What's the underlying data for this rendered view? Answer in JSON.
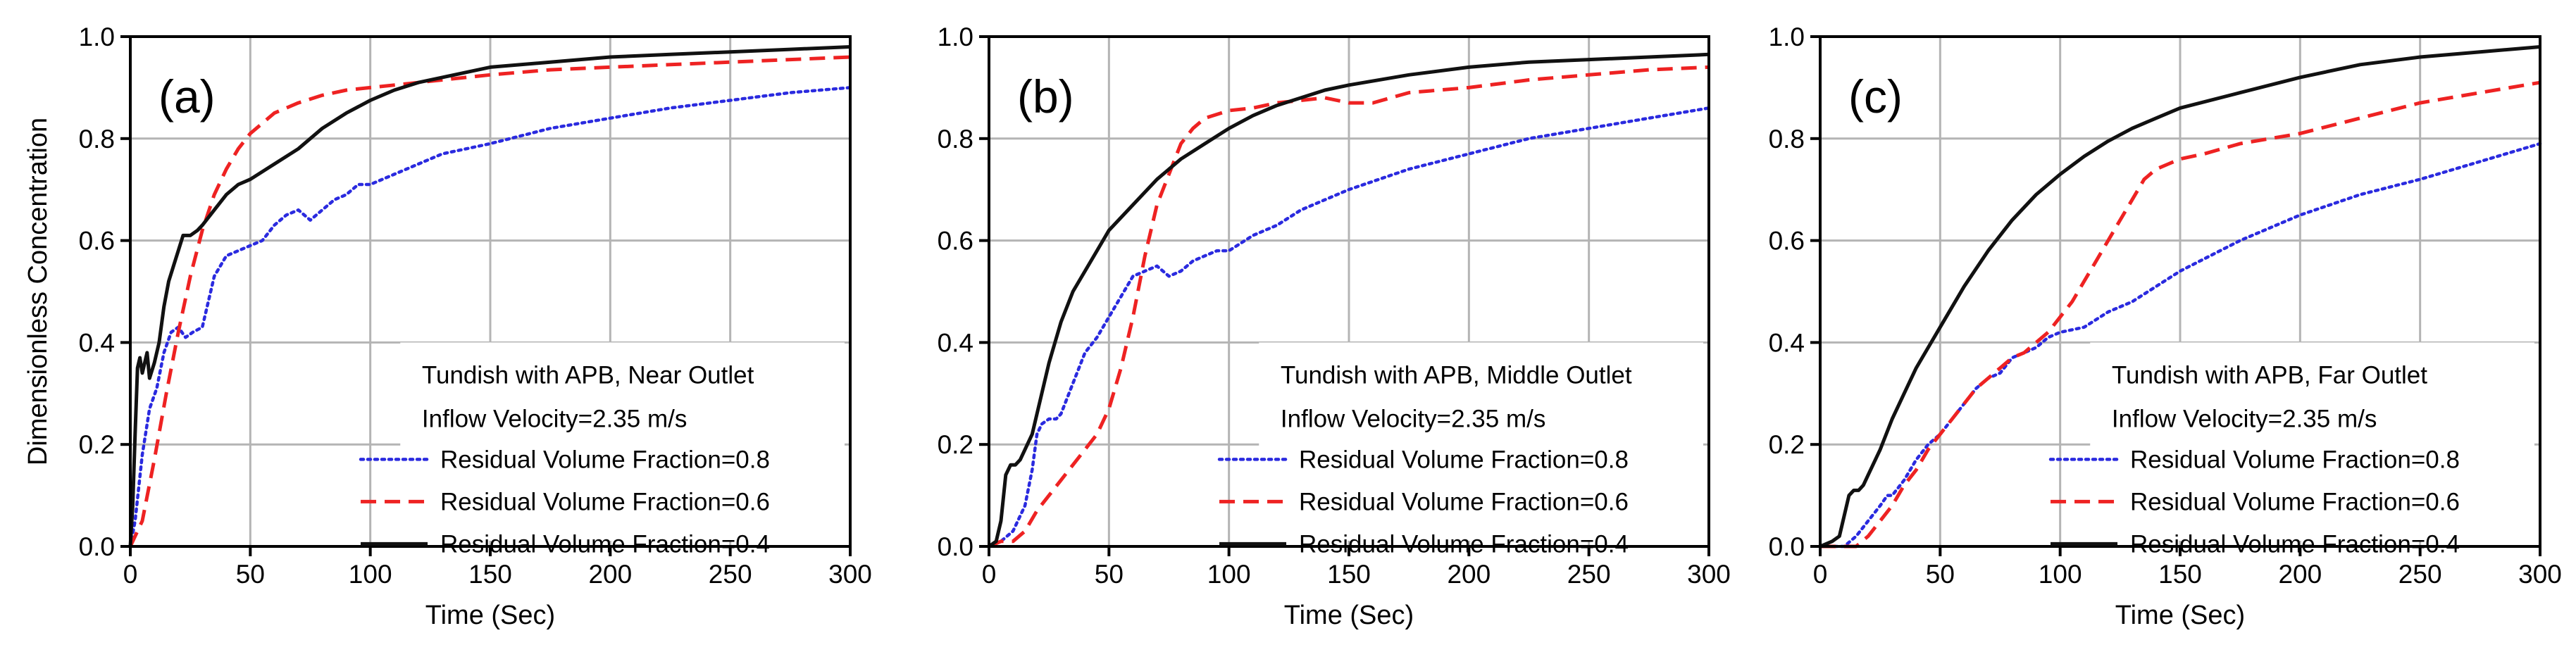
{
  "chart_data": [
    {
      "type": "line",
      "panel_label": "(a)",
      "xlabel": "Time (Sec)",
      "ylabel": "Dimensionless Concentration",
      "xlim": [
        0,
        300
      ],
      "ylim": [
        0,
        1.0
      ],
      "xticks": [
        "0",
        "50",
        "100",
        "150",
        "200",
        "250",
        "300"
      ],
      "yticks": [
        "0.0",
        "0.2",
        "0.4",
        "0.6",
        "0.8",
        "1.0"
      ],
      "grid": true,
      "legend_position": "bottom-right",
      "legend_title": [
        "Tundish with APB, Near Outlet",
        "Inflow Velocity=2.35 m/s"
      ],
      "series": [
        {
          "name": "Residual Volume Fraction=0.8",
          "color": "#2a2adf",
          "dash": "dotted",
          "x": [
            0,
            2,
            5,
            8,
            11,
            14,
            17,
            20,
            23,
            26,
            30,
            35,
            40,
            45,
            50,
            55,
            60,
            65,
            70,
            75,
            80,
            85,
            90,
            95,
            100,
            110,
            120,
            130,
            140,
            150,
            175,
            200,
            225,
            250,
            275,
            300
          ],
          "y": [
            0,
            0.05,
            0.18,
            0.27,
            0.31,
            0.38,
            0.42,
            0.43,
            0.41,
            0.42,
            0.43,
            0.53,
            0.57,
            0.58,
            0.59,
            0.6,
            0.63,
            0.65,
            0.66,
            0.64,
            0.66,
            0.68,
            0.69,
            0.71,
            0.71,
            0.73,
            0.75,
            0.77,
            0.78,
            0.79,
            0.82,
            0.84,
            0.86,
            0.875,
            0.89,
            0.9
          ]
        },
        {
          "name": "Residual Volume Fraction=0.6",
          "color": "#ee2222",
          "dash": "dashed",
          "x": [
            0,
            5,
            10,
            15,
            20,
            25,
            30,
            35,
            40,
            45,
            50,
            55,
            60,
            70,
            80,
            90,
            100,
            110,
            120,
            130,
            140,
            150,
            175,
            200,
            225,
            250,
            275,
            300
          ],
          "y": [
            0,
            0.05,
            0.17,
            0.3,
            0.42,
            0.53,
            0.62,
            0.69,
            0.74,
            0.78,
            0.81,
            0.83,
            0.85,
            0.87,
            0.885,
            0.895,
            0.9,
            0.905,
            0.91,
            0.915,
            0.92,
            0.925,
            0.935,
            0.94,
            0.945,
            0.95,
            0.955,
            0.96
          ]
        },
        {
          "name": "Residual Volume Fraction=0.4",
          "color": "#111111",
          "dash": "solid",
          "x": [
            0,
            1,
            2,
            3,
            4,
            5,
            6,
            7,
            8,
            10,
            12,
            14,
            16,
            18,
            20,
            22,
            25,
            28,
            30,
            35,
            40,
            45,
            50,
            60,
            70,
            80,
            90,
            100,
            110,
            120,
            130,
            140,
            150,
            175,
            200,
            225,
            250,
            275,
            300
          ],
          "y": [
            0,
            0.08,
            0.22,
            0.35,
            0.37,
            0.34,
            0.36,
            0.38,
            0.33,
            0.36,
            0.4,
            0.47,
            0.52,
            0.55,
            0.58,
            0.61,
            0.61,
            0.62,
            0.63,
            0.66,
            0.69,
            0.71,
            0.72,
            0.75,
            0.78,
            0.82,
            0.85,
            0.875,
            0.895,
            0.91,
            0.92,
            0.93,
            0.94,
            0.95,
            0.96,
            0.965,
            0.97,
            0.975,
            0.98
          ]
        }
      ]
    },
    {
      "type": "line",
      "panel_label": "(b)",
      "xlabel": "Time (Sec)",
      "ylabel": "",
      "xlim": [
        0,
        300
      ],
      "ylim": [
        0,
        1.0
      ],
      "xticks": [
        "0",
        "50",
        "100",
        "150",
        "200",
        "250",
        "300"
      ],
      "yticks": [
        "0.0",
        "0.2",
        "0.4",
        "0.6",
        "0.8",
        "1.0"
      ],
      "grid": true,
      "legend_position": "bottom-right",
      "legend_title": [
        "Tundish with APB, Middle Outlet",
        "Inflow Velocity=2.35 m/s"
      ],
      "series": [
        {
          "name": "Residual Volume Fraction=0.8",
          "color": "#2a2adf",
          "dash": "dotted",
          "x": [
            0,
            5,
            10,
            15,
            18,
            20,
            22,
            25,
            28,
            30,
            35,
            40,
            45,
            50,
            55,
            60,
            65,
            70,
            75,
            80,
            85,
            90,
            95,
            100,
            110,
            120,
            130,
            140,
            150,
            175,
            200,
            225,
            250,
            275,
            300
          ],
          "y": [
            0,
            0.01,
            0.03,
            0.08,
            0.15,
            0.22,
            0.24,
            0.25,
            0.25,
            0.26,
            0.32,
            0.38,
            0.41,
            0.45,
            0.49,
            0.53,
            0.54,
            0.55,
            0.53,
            0.54,
            0.56,
            0.57,
            0.58,
            0.58,
            0.61,
            0.63,
            0.66,
            0.68,
            0.7,
            0.74,
            0.77,
            0.8,
            0.82,
            0.84,
            0.86
          ]
        },
        {
          "name": "Residual Volume Fraction=0.6",
          "color": "#ee2222",
          "dash": "dashed",
          "x": [
            0,
            5,
            10,
            15,
            20,
            25,
            30,
            35,
            40,
            45,
            50,
            55,
            60,
            65,
            70,
            75,
            80,
            85,
            90,
            100,
            110,
            120,
            130,
            140,
            150,
            160,
            175,
            200,
            225,
            250,
            275,
            300
          ],
          "y": [
            0,
            0.01,
            0.01,
            0.03,
            0.07,
            0.1,
            0.13,
            0.16,
            0.19,
            0.22,
            0.27,
            0.35,
            0.45,
            0.57,
            0.67,
            0.73,
            0.79,
            0.82,
            0.84,
            0.855,
            0.86,
            0.87,
            0.875,
            0.88,
            0.87,
            0.87,
            0.89,
            0.9,
            0.915,
            0.925,
            0.935,
            0.94
          ]
        },
        {
          "name": "Residual Volume Fraction=0.4",
          "color": "#111111",
          "dash": "solid",
          "x": [
            0,
            3,
            5,
            7,
            9,
            11,
            13,
            15,
            18,
            20,
            25,
            30,
            35,
            40,
            45,
            50,
            60,
            70,
            80,
            90,
            100,
            110,
            120,
            130,
            140,
            150,
            175,
            200,
            225,
            250,
            275,
            300
          ],
          "y": [
            0,
            0.01,
            0.05,
            0.14,
            0.16,
            0.16,
            0.17,
            0.19,
            0.22,
            0.26,
            0.36,
            0.44,
            0.5,
            0.54,
            0.58,
            0.62,
            0.67,
            0.72,
            0.76,
            0.79,
            0.82,
            0.845,
            0.865,
            0.88,
            0.895,
            0.905,
            0.925,
            0.94,
            0.95,
            0.955,
            0.96,
            0.965
          ]
        }
      ]
    },
    {
      "type": "line",
      "panel_label": "(c)",
      "xlabel": "Time (Sec)",
      "ylabel": "",
      "xlim": [
        0,
        300
      ],
      "ylim": [
        0,
        1.0
      ],
      "xticks": [
        "0",
        "50",
        "100",
        "150",
        "200",
        "250",
        "300"
      ],
      "yticks": [
        "0.0",
        "0.2",
        "0.4",
        "0.6",
        "0.8",
        "1.0"
      ],
      "grid": true,
      "legend_position": "bottom-right",
      "legend_title": [
        "Tundish with APB, Far Outlet",
        "Inflow Velocity=2.35 m/s"
      ],
      "series": [
        {
          "name": "Residual Volume Fraction=0.8",
          "color": "#2a2adf",
          "dash": "dotted",
          "x": [
            0,
            10,
            15,
            20,
            25,
            28,
            30,
            35,
            40,
            45,
            50,
            55,
            60,
            65,
            70,
            75,
            80,
            85,
            90,
            95,
            100,
            110,
            120,
            130,
            140,
            150,
            175,
            200,
            225,
            250,
            275,
            300
          ],
          "y": [
            0,
            0.0,
            0.02,
            0.05,
            0.08,
            0.1,
            0.1,
            0.13,
            0.17,
            0.2,
            0.22,
            0.25,
            0.28,
            0.31,
            0.33,
            0.34,
            0.37,
            0.38,
            0.39,
            0.41,
            0.42,
            0.43,
            0.46,
            0.48,
            0.51,
            0.54,
            0.6,
            0.65,
            0.69,
            0.72,
            0.755,
            0.79
          ]
        },
        {
          "name": "Residual Volume Fraction=0.6",
          "color": "#ee2222",
          "dash": "dashed",
          "x": [
            0,
            15,
            20,
            25,
            30,
            35,
            40,
            45,
            50,
            55,
            60,
            65,
            70,
            75,
            80,
            85,
            90,
            95,
            100,
            105,
            110,
            115,
            120,
            125,
            130,
            135,
            140,
            145,
            150,
            160,
            175,
            200,
            225,
            250,
            275,
            300
          ],
          "y": [
            0,
            0.0,
            0.02,
            0.05,
            0.08,
            0.12,
            0.15,
            0.19,
            0.22,
            0.25,
            0.28,
            0.31,
            0.33,
            0.35,
            0.37,
            0.38,
            0.4,
            0.42,
            0.45,
            0.48,
            0.52,
            0.56,
            0.6,
            0.64,
            0.68,
            0.72,
            0.74,
            0.75,
            0.76,
            0.77,
            0.79,
            0.81,
            0.84,
            0.87,
            0.89,
            0.91
          ]
        },
        {
          "name": "Residual Volume Fraction=0.4",
          "color": "#111111",
          "dash": "solid",
          "x": [
            0,
            5,
            8,
            10,
            12,
            14,
            16,
            18,
            20,
            25,
            30,
            35,
            40,
            45,
            50,
            60,
            70,
            80,
            90,
            100,
            110,
            120,
            130,
            140,
            150,
            175,
            200,
            225,
            250,
            275,
            300
          ],
          "y": [
            0,
            0.01,
            0.02,
            0.06,
            0.1,
            0.11,
            0.11,
            0.12,
            0.14,
            0.19,
            0.25,
            0.3,
            0.35,
            0.39,
            0.43,
            0.51,
            0.58,
            0.64,
            0.69,
            0.73,
            0.765,
            0.795,
            0.82,
            0.84,
            0.86,
            0.89,
            0.92,
            0.945,
            0.96,
            0.97,
            0.98
          ]
        }
      ]
    }
  ]
}
